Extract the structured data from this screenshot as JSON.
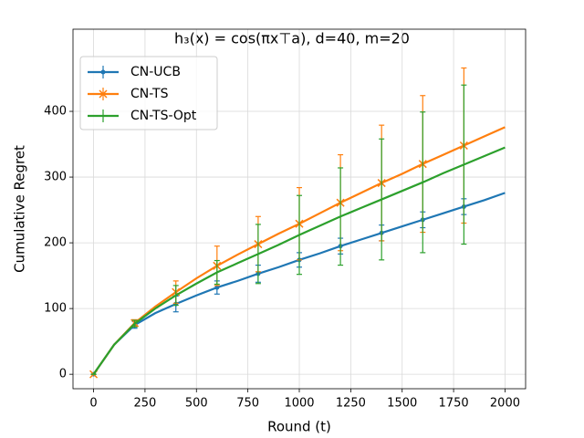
{
  "chart_data": {
    "type": "line",
    "title": "h₃(x) = cos(πx⊤a), d=40, m=20",
    "x_label": "Round (t)",
    "y_label": "Cumulative Regret",
    "x": [
      0,
      100,
      200,
      300,
      400,
      500,
      600,
      700,
      800,
      900,
      1000,
      1100,
      1200,
      1300,
      1400,
      1500,
      1600,
      1700,
      1800,
      1900,
      2000
    ],
    "series": [
      {
        "name": "CN-UCB",
        "color": "#1f77b4",
        "marker": "o",
        "values": [
          0,
          45,
          75,
          93,
          107,
          120,
          132,
          142,
          153,
          163,
          174,
          184,
          195,
          205,
          215,
          225,
          235,
          245,
          255,
          265,
          276
        ],
        "errors": [
          0,
          null,
          5,
          null,
          12,
          null,
          10,
          null,
          13,
          null,
          11,
          null,
          12,
          null,
          12,
          null,
          12,
          null,
          12,
          null,
          null
        ]
      },
      {
        "name": "CN-TS",
        "color": "#ff7f0e",
        "marker": "x",
        "values": [
          0,
          45,
          78,
          103,
          125,
          146,
          165,
          182,
          198,
          214,
          229,
          245,
          261,
          276,
          291,
          305,
          320,
          334,
          348,
          362,
          376
        ],
        "errors": [
          0,
          null,
          5,
          null,
          17,
          null,
          30,
          null,
          42,
          null,
          55,
          null,
          73,
          null,
          88,
          null,
          104,
          null,
          118,
          null,
          null
        ]
      },
      {
        "name": "CN-TS-Opt",
        "color": "#2ca02c",
        "values": [
          0,
          45,
          77,
          100,
          120,
          138,
          155,
          169,
          183,
          197,
          212,
          226,
          240,
          253,
          266,
          279,
          292,
          306,
          319,
          332,
          345
        ],
        "errors": [
          0,
          null,
          5,
          null,
          15,
          null,
          18,
          null,
          45,
          null,
          60,
          null,
          74,
          null,
          92,
          null,
          107,
          null,
          121,
          null,
          null
        ]
      }
    ],
    "xlim": [
      -100,
      2100
    ],
    "xticks": [
      0,
      250,
      500,
      750,
      1000,
      1250,
      1500,
      1750,
      2000
    ],
    "ylim": [
      -22,
      525
    ],
    "yticks": [
      0,
      100,
      200,
      300,
      400
    ],
    "grid": true,
    "legend": "upper-left"
  }
}
